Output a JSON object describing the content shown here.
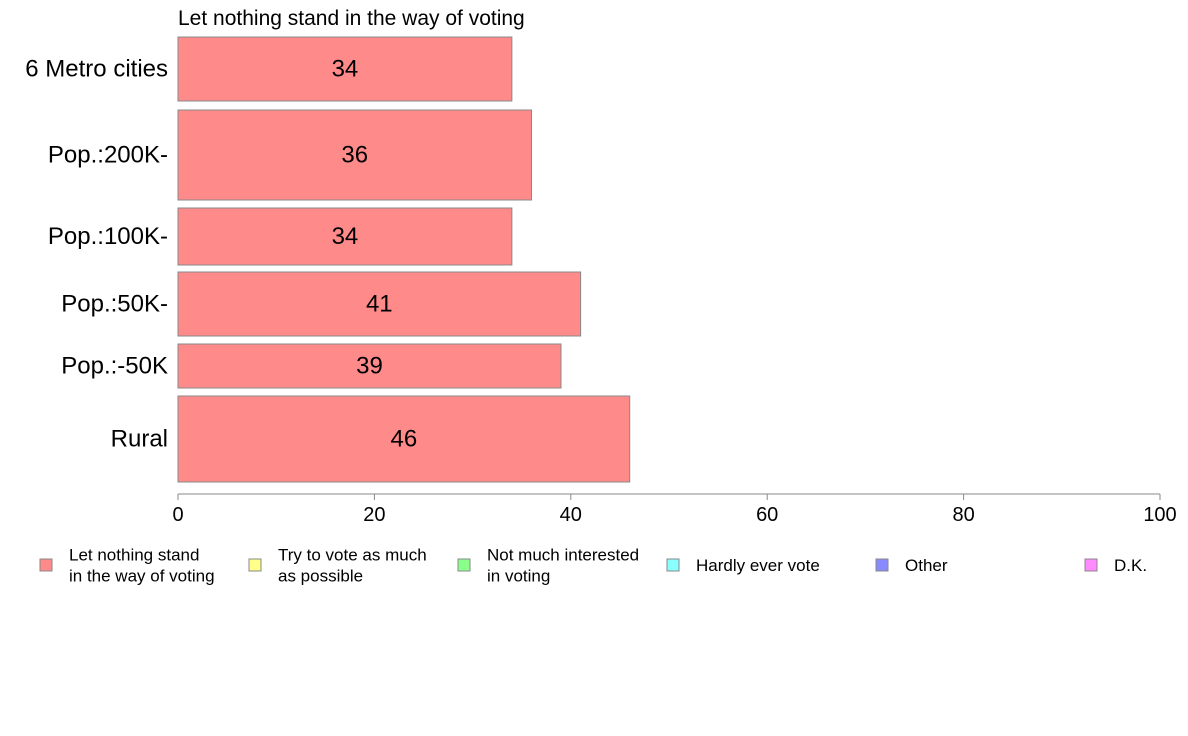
{
  "chart_data": {
    "type": "bar",
    "orientation": "horizontal",
    "title": "Let nothing stand in the way of voting",
    "categories": [
      "6 Metro cities",
      "Pop.:200K-",
      "Pop.:100K-",
      "Pop.:50K-",
      "Pop.:-50K",
      "Rural"
    ],
    "series": [
      {
        "name": "Let nothing stand in the way of voting",
        "values": [
          34,
          36,
          34,
          41,
          39,
          46
        ],
        "color": "#ff8a8a"
      }
    ],
    "data_labels": [
      "34",
      "36",
      "34",
      "41",
      "39",
      "46"
    ],
    "xlim": [
      0,
      100
    ],
    "xticks": [
      "0",
      "20",
      "40",
      "60",
      "80",
      "100"
    ],
    "grid": false,
    "legend": {
      "placement": "bottom",
      "entries": [
        {
          "lines": [
            "Let nothing stand",
            "in the way of voting"
          ],
          "color": "#ff8a8a"
        },
        {
          "lines": [
            "Try to vote as much",
            "as possible"
          ],
          "color": "#ffff8a"
        },
        {
          "lines": [
            "Not much interested",
            "in voting"
          ],
          "color": "#8aff8a"
        },
        {
          "lines": [
            "Hardly ever vote"
          ],
          "color": "#8affff"
        },
        {
          "lines": [
            "Other"
          ],
          "color": "#8a8aff"
        },
        {
          "lines": [
            "D.K."
          ],
          "color": "#ff8aff"
        }
      ]
    }
  }
}
